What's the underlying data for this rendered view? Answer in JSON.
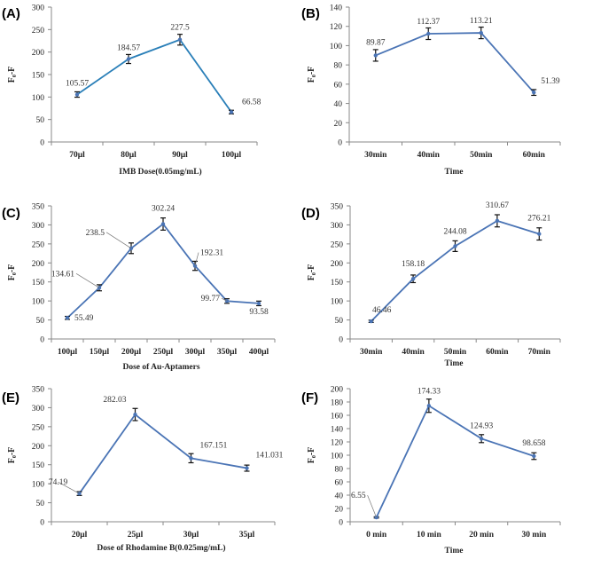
{
  "colors": {
    "line": "#4a74b5",
    "line_a": "#2a7fb8",
    "marker": "#4a74b5",
    "error": "#111111"
  },
  "chart_data": [
    {
      "panel": "(A)",
      "type": "line",
      "categories": [
        "70μl",
        "80μl",
        "90μl",
        "100μl"
      ],
      "values": [
        105.57,
        184.57,
        227.5,
        66.58
      ],
      "value_labels": [
        "105.57",
        "184.57",
        "227.5",
        "66.58"
      ],
      "errors": [
        6,
        10,
        12,
        4
      ],
      "ylim": [
        0,
        300
      ],
      "yticks": [
        "0",
        "50",
        "100",
        "150",
        "200",
        "250",
        "300"
      ],
      "xlabel": "IMB Dose(0.05mg/mL)",
      "ylabel": "F₀-F"
    },
    {
      "panel": "(B)",
      "type": "line",
      "categories": [
        "30min",
        "40min",
        "50min",
        "60min"
      ],
      "values": [
        89.87,
        112.37,
        113.21,
        51.39
      ],
      "value_labels": [
        "89.87",
        "112.37",
        "113.21",
        "51.39"
      ],
      "errors": [
        6,
        6,
        6,
        3
      ],
      "ylim": [
        0,
        140
      ],
      "yticks": [
        "0",
        "20",
        "40",
        "60",
        "80",
        "100",
        "120",
        "140"
      ],
      "xlabel": "Time",
      "ylabel": "F₀-F"
    },
    {
      "panel": "(C)",
      "type": "line",
      "categories": [
        "100μl",
        "150μl",
        "200μl",
        "250μl",
        "300μl",
        "350μl",
        "400μl"
      ],
      "values": [
        55.49,
        134.61,
        238.5,
        302.24,
        192.31,
        99.77,
        93.58
      ],
      "value_labels": [
        "55.49",
        "134.61",
        "238.5",
        "302.24",
        "192.31",
        "99.77",
        "93.58"
      ],
      "errors": [
        4,
        8,
        14,
        16,
        12,
        6,
        6
      ],
      "ylim": [
        0,
        350
      ],
      "yticks": [
        "0",
        "50",
        "100",
        "150",
        "200",
        "250",
        "300",
        "350"
      ],
      "xlabel": "Dose of Au-Aptamers",
      "ylabel": "F₀-F"
    },
    {
      "panel": "(D)",
      "type": "line",
      "categories": [
        "30min",
        "40min",
        "50min",
        "60min",
        "70min"
      ],
      "values": [
        46.46,
        158.18,
        244.08,
        310.67,
        276.21
      ],
      "value_labels": [
        "46.46",
        "158.18",
        "244.08",
        "310.67",
        "276.21"
      ],
      "errors": [
        3,
        10,
        14,
        16,
        16
      ],
      "ylim": [
        0,
        350
      ],
      "yticks": [
        "0",
        "50",
        "100",
        "150",
        "200",
        "250",
        "300",
        "350"
      ],
      "xlabel": "Time",
      "ylabel": "F₀-F"
    },
    {
      "panel": "(E)",
      "type": "line",
      "categories": [
        "20μl",
        "25μl",
        "30μl",
        "35μl"
      ],
      "values": [
        74.19,
        282.03,
        167.151,
        141.031
      ],
      "value_labels": [
        "74.19",
        "282.03",
        "167.151",
        "141.031"
      ],
      "errors": [
        5,
        16,
        12,
        8
      ],
      "ylim": [
        0,
        350
      ],
      "yticks": [
        "0",
        "50",
        "100",
        "150",
        "200",
        "250",
        "300",
        "350"
      ],
      "xlabel": "Dose of Rhodamine B(0.025mg/mL)",
      "ylabel": "F₀-F"
    },
    {
      "panel": "(F)",
      "type": "line",
      "categories": [
        "0 min",
        "10 min",
        "20 min",
        "30 min"
      ],
      "values": [
        6.55,
        174.33,
        124.93,
        98.658
      ],
      "value_labels": [
        "6.55",
        "174.33",
        "124.93",
        "98.658"
      ],
      "errors": [
        1,
        10,
        6,
        5
      ],
      "ylim": [
        0,
        200
      ],
      "yticks": [
        "0",
        "20",
        "40",
        "60",
        "80",
        "100",
        "120",
        "140",
        "160",
        "180",
        "200"
      ],
      "xlabel": "Time",
      "ylabel": "F₀-F"
    }
  ]
}
